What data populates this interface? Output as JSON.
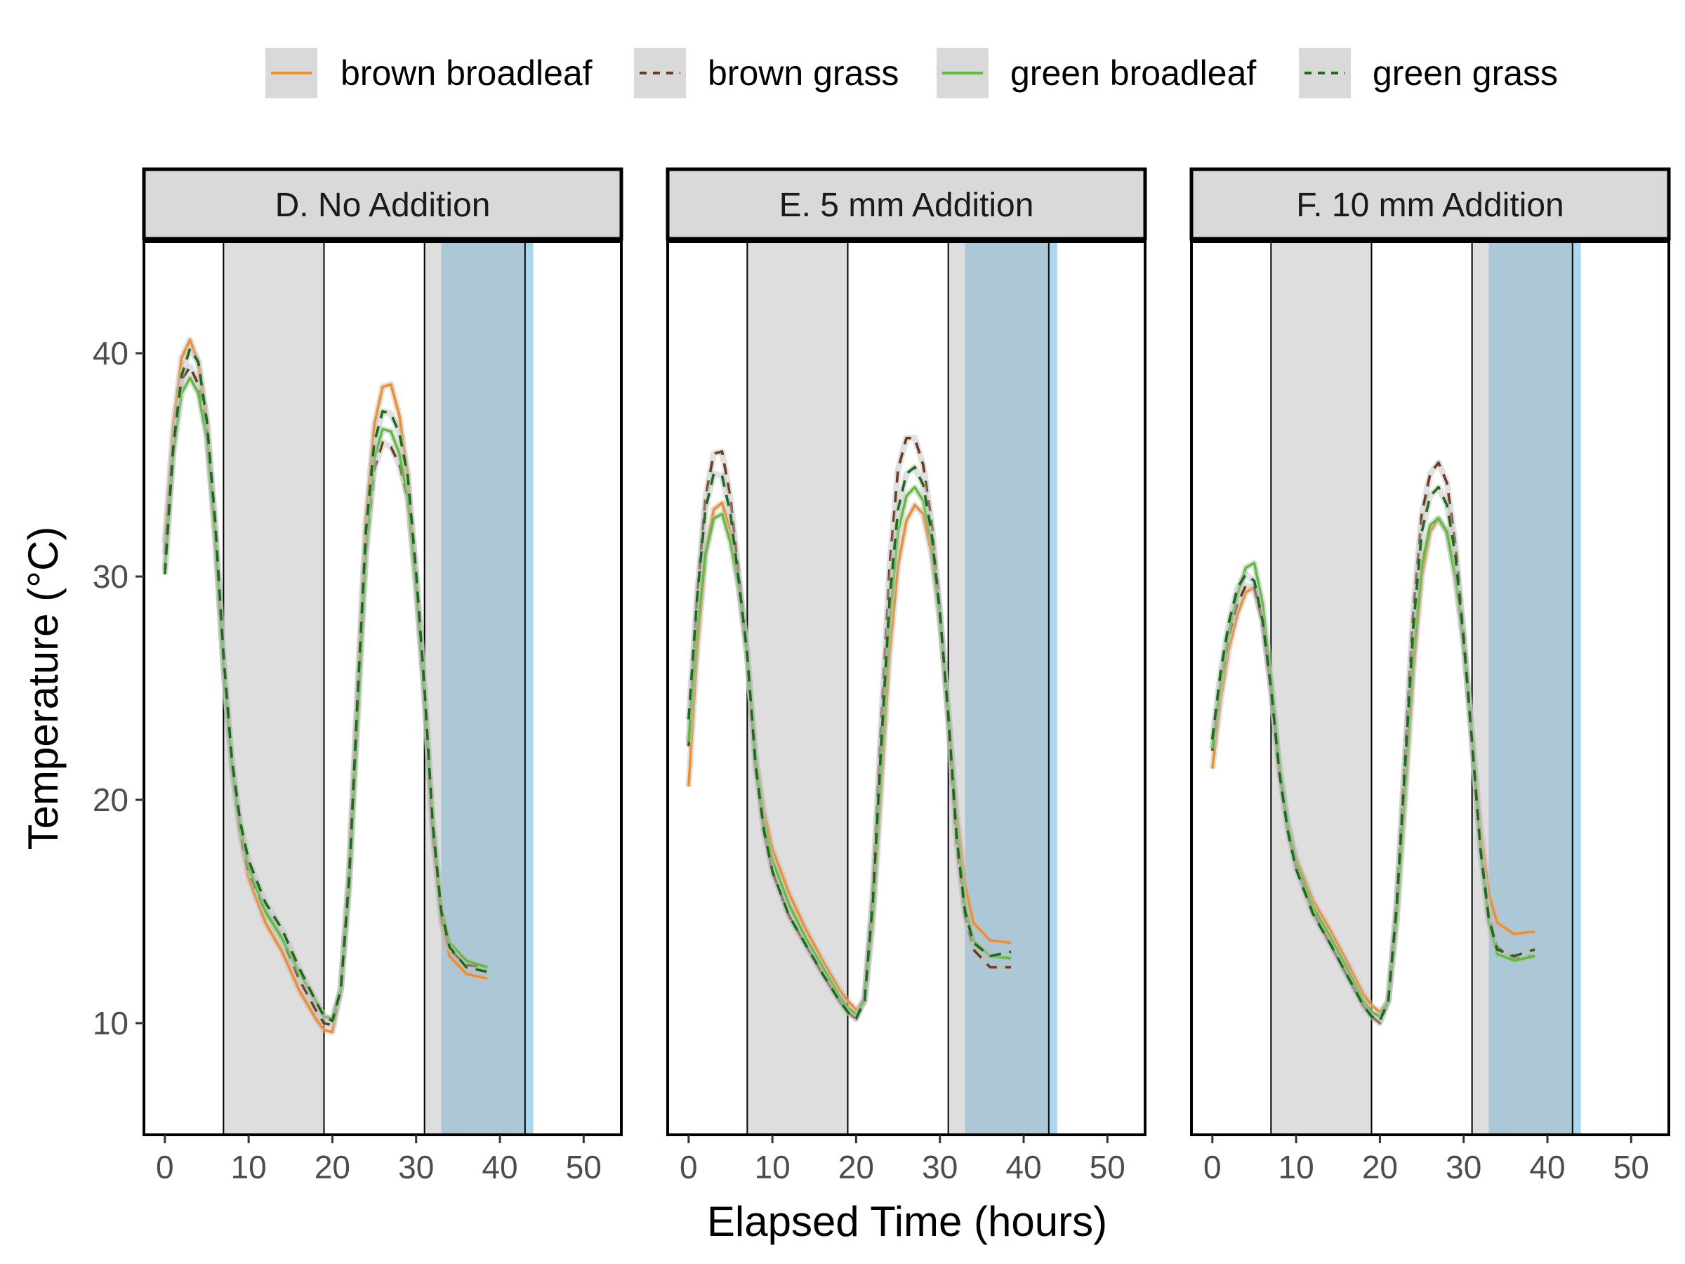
{
  "chart_data": {
    "type": "line",
    "xlabel": "Elapsed Time (hours)",
    "ylabel": "Temperature (°C)",
    "xlim": [
      -2.5,
      54.5
    ],
    "ylim": [
      5,
      45
    ],
    "xticks": [
      0,
      10,
      20,
      30,
      40,
      50
    ],
    "yticks": [
      10,
      20,
      30,
      40
    ],
    "legend_position": "top",
    "grid": false,
    "colors": {
      "shade_gray": "#dedede",
      "shade_blue": "#acc8d6",
      "shade_blue_edge": "#a8d8ee",
      "strip_fill": "#d9d9d9",
      "vline": "#000000"
    },
    "shaded_regions": [
      {
        "x0": 7,
        "x1": 19,
        "fill": "gray"
      },
      {
        "x0": 31,
        "x1": 33,
        "fill": "gray"
      },
      {
        "x0": 33,
        "x1": 43,
        "fill": "blue"
      },
      {
        "x0": 43,
        "x1": 44,
        "fill": "lightblue"
      }
    ],
    "vlines": [
      7,
      19,
      31,
      43
    ],
    "series_styles": [
      {
        "name": "brown broadleaf",
        "color": "#f28e2b",
        "dash": "solid"
      },
      {
        "name": "brown grass",
        "color": "#6b3a1f",
        "dash": "dashed"
      },
      {
        "name": "green broadleaf",
        "color": "#5cbf3a",
        "dash": "solid"
      },
      {
        "name": "green grass",
        "color": "#1b6b1b",
        "dash": "dashed"
      }
    ],
    "panels": [
      {
        "title": "D. No Addition",
        "series": [
          {
            "name": "brown broadleaf",
            "x": [
              0,
              1,
              2,
              3,
              4,
              5,
              6,
              7,
              8,
              9,
              10,
              12,
              14,
              16,
              18,
              19,
              20,
              21,
              22,
              23,
              24,
              25,
              26,
              27,
              28,
              29,
              30,
              31,
              32,
              33,
              34,
              36,
              38.5
            ],
            "y": [
              31.5,
              36.8,
              39.8,
              40.6,
              39.6,
              37.0,
              32.0,
              26.0,
              21.5,
              18.5,
              16.5,
              14.5,
              13.2,
              11.5,
              10.2,
              9.7,
              9.6,
              11.5,
              17.0,
              25.0,
              32.5,
              36.8,
              38.5,
              38.6,
              37.2,
              34.5,
              30.0,
              25.0,
              18.5,
              14.5,
              13.0,
              12.2,
              12.0
            ]
          },
          {
            "name": "brown grass",
            "x": [
              0,
              1,
              2,
              3,
              4,
              5,
              6,
              7,
              8,
              9,
              10,
              12,
              14,
              16,
              18,
              19,
              20,
              21,
              22,
              23,
              24,
              25,
              26,
              27,
              28,
              29,
              30,
              31,
              32,
              33,
              34,
              36,
              38.5
            ],
            "y": [
              31.0,
              36.0,
              38.8,
              39.4,
              38.6,
              36.5,
              32.0,
              26.0,
              21.5,
              18.5,
              16.8,
              15.0,
              13.8,
              12.0,
              10.6,
              10.0,
              9.9,
              11.5,
              16.5,
              24.0,
              31.0,
              34.8,
              36.0,
              35.8,
              35.0,
              33.5,
              29.5,
              24.5,
              18.5,
              14.8,
              13.3,
              12.6,
              12.5
            ]
          },
          {
            "name": "green broadleaf",
            "x": [
              0,
              1,
              2,
              3,
              4,
              5,
              6,
              7,
              8,
              9,
              10,
              12,
              14,
              16,
              18,
              19,
              20,
              21,
              22,
              23,
              24,
              25,
              26,
              27,
              28,
              29,
              30,
              31,
              32,
              33,
              34,
              36,
              38.5
            ],
            "y": [
              30.3,
              35.5,
              38.2,
              38.9,
              38.2,
              36.2,
              31.8,
              26.0,
              21.5,
              18.8,
              17.0,
              15.0,
              13.8,
              12.3,
              11.0,
              10.3,
              10.2,
              11.5,
              16.0,
              23.5,
              31.0,
              35.3,
              36.6,
              36.5,
              35.5,
              33.5,
              29.5,
              24.8,
              19.0,
              15.2,
              13.6,
              12.8,
              12.5
            ]
          },
          {
            "name": "green grass",
            "x": [
              0,
              1,
              2,
              3,
              4,
              5,
              6,
              7,
              8,
              9,
              10,
              12,
              14,
              16,
              18,
              19,
              20,
              21,
              22,
              23,
              24,
              25,
              26,
              27,
              28,
              29,
              30,
              31,
              32,
              33,
              34,
              36,
              38.5
            ],
            "y": [
              30.1,
              35.8,
              39.0,
              40.2,
              39.6,
              37.0,
              32.5,
              26.5,
              21.8,
              19.0,
              17.3,
              15.4,
              14.2,
              12.5,
              11.0,
              10.3,
              10.1,
              11.5,
              16.5,
              24.5,
              32.0,
              36.0,
              37.4,
              37.3,
              36.4,
              34.5,
              30.2,
              25.0,
              18.8,
              15.0,
              13.4,
              12.5,
              12.3
            ]
          }
        ]
      },
      {
        "title": "E. 5 mm Addition",
        "series": [
          {
            "name": "brown broadleaf",
            "x": [
              0,
              1,
              2,
              3,
              4,
              5,
              6,
              7,
              8,
              9,
              10,
              12,
              14,
              16,
              18,
              19,
              20,
              21,
              22,
              23,
              24,
              25,
              26,
              27,
              28,
              29,
              30,
              31,
              32,
              33,
              34,
              36,
              38.5
            ],
            "y": [
              20.6,
              26.5,
              31.0,
              33.0,
              33.3,
              32.0,
              29.5,
              26.5,
              22.0,
              19.5,
              17.8,
              15.8,
              14.2,
              12.8,
              11.5,
              11.0,
              10.6,
              11.0,
              14.5,
              20.5,
              26.5,
              30.5,
              32.5,
              33.2,
              32.8,
              31.0,
              28.0,
              24.0,
              19.5,
              16.2,
              14.5,
              13.7,
              13.6
            ]
          },
          {
            "name": "brown grass",
            "x": [
              0,
              1,
              2,
              3,
              4,
              5,
              6,
              7,
              8,
              9,
              10,
              12,
              14,
              16,
              18,
              19,
              20,
              21,
              22,
              23,
              24,
              25,
              26,
              27,
              28,
              29,
              30,
              31,
              32,
              33,
              34,
              36,
              38.5
            ],
            "y": [
              22.4,
              29.0,
              33.5,
              35.5,
              35.6,
              33.5,
              30.0,
              26.5,
              21.5,
              18.6,
              16.8,
              14.8,
              13.5,
              12.2,
              11.0,
              10.5,
              10.2,
              11.2,
              16.0,
              23.5,
              30.5,
              34.8,
              36.2,
              36.2,
              35.0,
              32.5,
              28.5,
              23.5,
              18.0,
              14.8,
              13.3,
              12.5,
              12.5
            ]
          },
          {
            "name": "green broadleaf",
            "x": [
              0,
              1,
              2,
              3,
              4,
              5,
              6,
              7,
              8,
              9,
              10,
              12,
              14,
              16,
              18,
              19,
              20,
              21,
              22,
              23,
              24,
              25,
              26,
              27,
              28,
              29,
              30,
              31,
              32,
              33,
              34,
              36,
              38.5
            ],
            "y": [
              22.6,
              27.5,
              31.0,
              32.6,
              32.8,
              31.5,
              29.5,
              26.5,
              21.8,
              19.0,
              17.3,
              15.3,
              13.8,
              12.5,
              11.2,
              10.7,
              10.4,
              11.0,
              15.0,
              21.5,
              28.0,
              32.0,
              33.6,
              34.0,
              33.4,
              31.5,
              28.2,
              24.0,
              18.8,
              15.2,
              13.7,
              13.0,
              12.9
            ]
          },
          {
            "name": "green grass",
            "x": [
              0,
              1,
              2,
              3,
              4,
              5,
              6,
              7,
              8,
              9,
              10,
              12,
              14,
              16,
              18,
              19,
              20,
              21,
              22,
              23,
              24,
              25,
              26,
              27,
              28,
              29,
              30,
              31,
              32,
              33,
              34,
              36,
              38.5
            ],
            "y": [
              23.6,
              29.0,
              33.0,
              34.6,
              34.5,
              32.8,
              29.8,
              26.5,
              21.5,
              18.6,
              16.8,
              14.8,
              13.5,
              12.2,
              11.0,
              10.5,
              10.2,
              11.0,
              15.5,
              22.5,
              29.0,
              33.0,
              34.6,
              34.9,
              34.1,
              32.0,
              28.4,
              23.8,
              18.3,
              15.0,
              13.6,
              13.0,
              13.2
            ]
          }
        ]
      },
      {
        "title": "F. 10 mm Addition",
        "series": [
          {
            "name": "brown broadleaf",
            "x": [
              0,
              1,
              2,
              3,
              4,
              5,
              6,
              7,
              8,
              9,
              10,
              12,
              14,
              16,
              18,
              19,
              20,
              21,
              22,
              23,
              24,
              25,
              26,
              27,
              28,
              29,
              30,
              31,
              32,
              33,
              34,
              36,
              38.5
            ],
            "y": [
              21.4,
              24.5,
              26.8,
              28.3,
              29.3,
              29.5,
              28.0,
              25.0,
              21.5,
              19.0,
              17.4,
              15.5,
              14.2,
              12.8,
              11.3,
              10.8,
              10.5,
              11.0,
              14.5,
              20.0,
              25.8,
              30.0,
              32.0,
              32.6,
              32.0,
              30.0,
              27.0,
              23.0,
              18.8,
              15.8,
              14.5,
              14.0,
              14.1
            ]
          },
          {
            "name": "brown grass",
            "x": [
              0,
              1,
              2,
              3,
              4,
              5,
              6,
              7,
              8,
              9,
              10,
              12,
              14,
              16,
              18,
              19,
              20,
              21,
              22,
              23,
              24,
              25,
              26,
              27,
              28,
              29,
              30,
              31,
              32,
              33,
              34,
              36,
              38.5
            ],
            "y": [
              22.2,
              25.2,
              27.4,
              28.8,
              29.6,
              29.5,
              28.0,
              25.0,
              21.3,
              18.7,
              17.0,
              15.0,
              13.6,
              12.2,
              10.8,
              10.3,
              10.0,
              11.0,
              15.5,
              22.0,
              28.5,
              32.8,
              34.6,
              35.1,
              34.2,
              31.5,
              27.5,
              22.8,
              18.0,
              14.8,
              13.4,
              12.9,
              13.0
            ]
          },
          {
            "name": "green broadleaf",
            "x": [
              0,
              1,
              2,
              3,
              4,
              5,
              6,
              7,
              8,
              9,
              10,
              12,
              14,
              16,
              18,
              19,
              20,
              21,
              22,
              23,
              24,
              25,
              26,
              27,
              28,
              29,
              30,
              31,
              32,
              33,
              34,
              36,
              38.5
            ],
            "y": [
              22.3,
              25.3,
              27.6,
              29.2,
              30.4,
              30.6,
              28.8,
              25.5,
              21.5,
              18.9,
              17.2,
              15.2,
              13.9,
              12.5,
              11.0,
              10.5,
              10.3,
              11.0,
              14.8,
              20.5,
              26.5,
              30.5,
              32.3,
              32.6,
              32.0,
              30.0,
              27.0,
              22.8,
              17.8,
              14.5,
              13.1,
              12.8,
              13.0
            ]
          },
          {
            "name": "green grass",
            "x": [
              0,
              1,
              2,
              3,
              4,
              5,
              6,
              7,
              8,
              9,
              10,
              12,
              14,
              16,
              18,
              19,
              20,
              21,
              22,
              23,
              24,
              25,
              26,
              27,
              28,
              29,
              30,
              31,
              32,
              33,
              34,
              36,
              38.5
            ],
            "y": [
              22.7,
              25.8,
              28.0,
              29.5,
              30.1,
              29.8,
              28.0,
              25.0,
              21.2,
              18.6,
              16.9,
              14.9,
              13.6,
              12.2,
              10.8,
              10.3,
              10.1,
              11.0,
              15.2,
              21.5,
              27.8,
              32.0,
              33.6,
              34.0,
              33.2,
              31.0,
              27.2,
              22.6,
              17.8,
              14.7,
              13.3,
              13.0,
              13.3
            ]
          }
        ]
      }
    ]
  }
}
